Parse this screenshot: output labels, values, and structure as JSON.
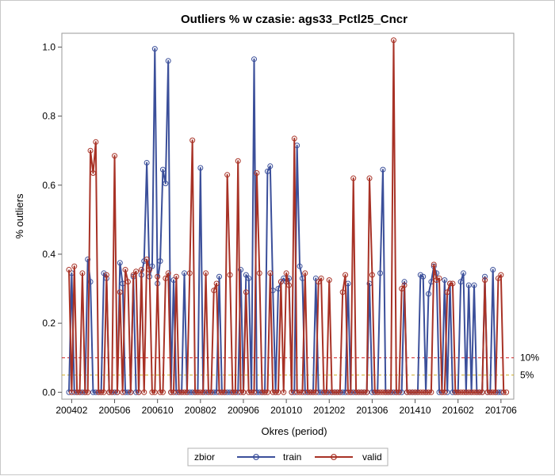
{
  "chart_data": {
    "type": "line",
    "title": "Outliers % w czasie: ags33_Pctl25_Cncr",
    "xlabel": "Okres (period)",
    "ylabel": "% outliers",
    "x_ticks": [
      "200402",
      "200506",
      "200610",
      "200802",
      "200906",
      "201010",
      "201202",
      "201306",
      "201410",
      "201602",
      "201706"
    ],
    "y_ticks": [
      "0.0",
      "0.2",
      "0.4",
      "0.6",
      "0.8",
      "1.0"
    ],
    "ylim": [
      -0.02,
      1.04
    ],
    "period_start": "2004-01",
    "num_periods": 165,
    "reference_lines": [
      {
        "value": 0.1,
        "label": "10%",
        "color": "#d02020"
      },
      {
        "value": 0.05,
        "label": "5%",
        "color": "#d0b030"
      }
    ],
    "legend": {
      "title": "zbior",
      "placement": "bottom"
    },
    "series": [
      {
        "name": "train",
        "color": "#3b4f9a",
        "values": [
          0,
          0.345,
          0,
          0,
          0,
          0,
          0,
          0.385,
          0.32,
          0,
          0,
          0,
          0,
          0.345,
          0.33,
          0,
          0,
          0,
          0,
          0.375,
          0.315,
          0,
          0,
          0,
          0.335,
          0,
          0,
          0.34,
          0.38,
          0.665,
          0.335,
          0.365,
          0.995,
          0.315,
          0.38,
          0.645,
          0.605,
          0.96,
          0,
          0.325,
          0,
          0,
          0,
          0.345,
          0,
          0,
          0,
          0,
          0,
          0.65,
          0,
          0,
          0,
          0,
          0,
          0,
          0.335,
          0,
          0,
          0,
          0,
          0,
          0,
          0,
          0.355,
          0,
          0.34,
          0.33,
          0,
          0.965,
          0,
          0,
          0,
          0,
          0.64,
          0.655,
          0.295,
          0,
          0.3,
          0.32,
          0.33,
          0.32,
          0.33,
          0,
          0,
          0.715,
          0.365,
          0.33,
          0,
          0,
          0,
          0,
          0.33,
          0,
          0,
          0,
          0,
          0,
          0,
          0,
          0,
          0,
          0,
          0,
          0.315,
          0,
          0,
          0,
          0,
          0,
          0,
          0,
          0.315,
          0,
          0,
          0,
          0.345,
          0.645,
          0,
          0,
          0,
          0,
          0,
          0,
          0,
          0.32,
          0,
          0,
          0,
          0,
          0,
          0.34,
          0.335,
          0,
          0.285,
          0.32,
          0.365,
          0.345,
          0,
          0,
          0.325,
          0,
          0.315,
          0,
          0,
          0,
          0.32,
          0.345,
          0,
          0.31,
          0,
          0.31,
          0,
          0,
          0,
          0.335,
          0,
          0,
          0.355,
          0,
          0,
          0
        ]
      },
      {
        "name": "valid",
        "color": "#a83226",
        "values": [
          0.355,
          0,
          0.365,
          0,
          0,
          0.345,
          0,
          0,
          0.7,
          0.635,
          0.725,
          0,
          0,
          0,
          0.34,
          0,
          0,
          0.685,
          0,
          0.29,
          0,
          0.355,
          0.32,
          0,
          0.34,
          0.35,
          0,
          0.355,
          0,
          0.385,
          0.355,
          0,
          0,
          0.335,
          0,
          0,
          0.33,
          0.345,
          0,
          0,
          0.335,
          0,
          0,
          0,
          0,
          0.345,
          0.73,
          0,
          0,
          0,
          0,
          0.345,
          0,
          0,
          0.295,
          0.315,
          0,
          0,
          0,
          0.63,
          0.34,
          0,
          0,
          0.67,
          0,
          0,
          0.29,
          0,
          0,
          0,
          0.635,
          0.345,
          0,
          0,
          0,
          0.345,
          0,
          0,
          0,
          0.32,
          0,
          0.345,
          0.31,
          0,
          0.735,
          0,
          0,
          0,
          0.345,
          0,
          0,
          0,
          0,
          0.32,
          0.33,
          0,
          0,
          0.325,
          0,
          0,
          0,
          0,
          0.29,
          0.34,
          0,
          0,
          0.62,
          0,
          0,
          0,
          0,
          0,
          0.62,
          0.34,
          0,
          0,
          0,
          0,
          0,
          0,
          0,
          1.02,
          0,
          0,
          0.3,
          0.31,
          0,
          0,
          0,
          0,
          0,
          0,
          0,
          0,
          0,
          0,
          0.37,
          0.325,
          0.33,
          0,
          0,
          0.29,
          0.315,
          0.315,
          0,
          0,
          0,
          0,
          0,
          0,
          0,
          0,
          0,
          0,
          0,
          0.325,
          0,
          0,
          0,
          0,
          0.33,
          0.34,
          0,
          0
        ]
      }
    ]
  }
}
